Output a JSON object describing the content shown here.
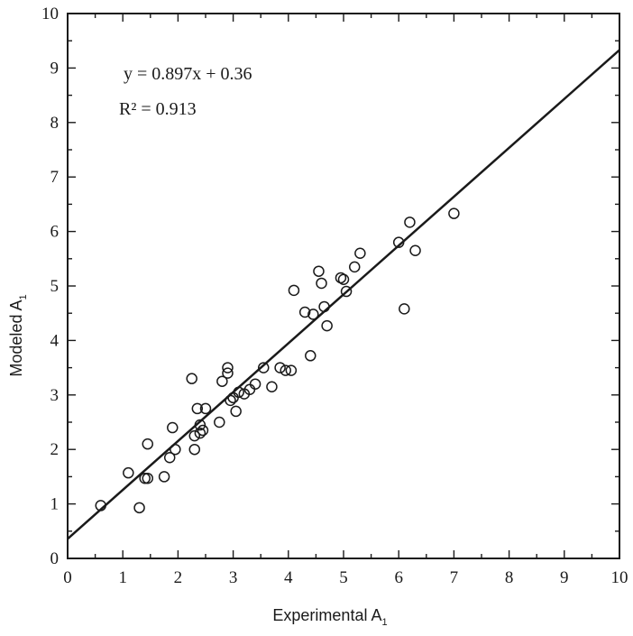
{
  "chart_data": {
    "type": "scatter",
    "title": "",
    "xlabel": "Experimental A",
    "xlabel_sub": "1",
    "ylabel": "Modeled A",
    "ylabel_sub": "1",
    "xlim": [
      0,
      10
    ],
    "ylim": [
      0,
      10
    ],
    "xticks": [
      "0",
      "1",
      "2",
      "3",
      "4",
      "5",
      "6",
      "7",
      "8",
      "9",
      "10"
    ],
    "yticks": [
      "0",
      "1",
      "2",
      "3",
      "4",
      "5",
      "6",
      "7",
      "8",
      "9",
      "10"
    ],
    "grid": false,
    "legend": "none",
    "fit_line": {
      "slope": 0.897,
      "intercept": 0.36
    },
    "annotations": {
      "equation": "y = 0.897x + 0.36",
      "r2_label": "R² = 0.913"
    },
    "marker": "open-circle",
    "colors": {
      "ink": "#1a1a1a",
      "background": "#ffffff"
    },
    "points": [
      [
        0.6,
        0.97
      ],
      [
        1.1,
        1.57
      ],
      [
        1.3,
        0.93
      ],
      [
        1.4,
        1.47
      ],
      [
        1.45,
        1.47
      ],
      [
        1.45,
        2.1
      ],
      [
        1.75,
        1.5
      ],
      [
        1.85,
        1.85
      ],
      [
        1.9,
        2.4
      ],
      [
        1.95,
        2.0
      ],
      [
        2.25,
        3.3
      ],
      [
        2.3,
        2.0
      ],
      [
        2.3,
        2.25
      ],
      [
        2.35,
        2.75
      ],
      [
        2.4,
        2.3
      ],
      [
        2.4,
        2.45
      ],
      [
        2.45,
        2.35
      ],
      [
        2.5,
        2.75
      ],
      [
        2.75,
        2.5
      ],
      [
        2.8,
        3.25
      ],
      [
        2.9,
        3.5
      ],
      [
        2.9,
        3.4
      ],
      [
        2.95,
        2.9
      ],
      [
        3.0,
        2.95
      ],
      [
        3.05,
        2.7
      ],
      [
        3.1,
        3.05
      ],
      [
        3.2,
        3.02
      ],
      [
        3.3,
        3.1
      ],
      [
        3.4,
        3.2
      ],
      [
        3.55,
        3.5
      ],
      [
        3.7,
        3.15
      ],
      [
        3.85,
        3.5
      ],
      [
        3.95,
        3.45
      ],
      [
        4.05,
        3.45
      ],
      [
        4.1,
        4.92
      ],
      [
        4.3,
        4.52
      ],
      [
        4.4,
        3.72
      ],
      [
        4.45,
        4.48
      ],
      [
        4.55,
        5.27
      ],
      [
        4.6,
        5.05
      ],
      [
        4.65,
        4.62
      ],
      [
        4.7,
        4.27
      ],
      [
        4.95,
        5.15
      ],
      [
        5.0,
        5.12
      ],
      [
        5.05,
        4.9
      ],
      [
        5.2,
        5.35
      ],
      [
        5.3,
        5.6
      ],
      [
        6.0,
        5.8
      ],
      [
        6.1,
        4.58
      ],
      [
        6.2,
        6.17
      ],
      [
        6.3,
        5.65
      ],
      [
        7.0,
        6.33
      ]
    ]
  }
}
